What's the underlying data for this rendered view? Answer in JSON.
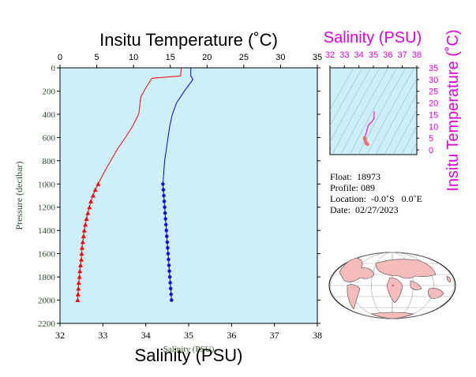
{
  "chart_data": [
    {
      "type": "line",
      "title": "",
      "top_axis": {
        "label": "Insitu Temperature (˚C)",
        "range": [
          0,
          35
        ],
        "ticks": [
          0,
          5,
          10,
          15,
          20,
          25,
          30,
          35
        ]
      },
      "bottom_axis": {
        "label": "Salinity (PSU)",
        "overlap_label": "Salinity (PSU)",
        "range": [
          32,
          38
        ],
        "ticks": [
          32,
          33,
          34,
          35,
          36,
          37,
          38
        ]
      },
      "left_axis": {
        "label": "Pressure (decibar)",
        "range": [
          0,
          2200
        ],
        "inverted": true,
        "ticks": [
          0,
          200,
          400,
          600,
          800,
          1000,
          1200,
          1400,
          1600,
          1800,
          2000,
          2200
        ]
      },
      "series": [
        {
          "axis": "temperature",
          "color": "#ff0000",
          "marker": "triangle",
          "line": [
            [
              16.5,
              0
            ],
            [
              16.4,
              70
            ],
            [
              12.5,
              90
            ],
            [
              11.7,
              170
            ],
            [
              11,
              250
            ],
            [
              10.9,
              300
            ],
            [
              10.7,
              400
            ],
            [
              9.9,
              500
            ],
            [
              8.9,
              600
            ],
            [
              7.8,
              700
            ],
            [
              6.9,
              800
            ],
            [
              6,
              900
            ],
            [
              5.2,
              1000
            ]
          ],
          "points": [
            [
              5.2,
              1000
            ],
            [
              4.8,
              1050
            ],
            [
              4.5,
              1100
            ],
            [
              4.2,
              1150
            ],
            [
              4.0,
              1200
            ],
            [
              3.8,
              1250
            ],
            [
              3.6,
              1300
            ],
            [
              3.45,
              1350
            ],
            [
              3.3,
              1400
            ],
            [
              3.2,
              1450
            ],
            [
              3.1,
              1500
            ],
            [
              3.0,
              1550
            ],
            [
              2.95,
              1600
            ],
            [
              2.9,
              1650
            ],
            [
              2.8,
              1700
            ],
            [
              2.7,
              1750
            ],
            [
              2.65,
              1800
            ],
            [
              2.55,
              1850
            ],
            [
              2.5,
              1900
            ],
            [
              2.45,
              1950
            ],
            [
              2.4,
              2000
            ]
          ]
        },
        {
          "axis": "salinity",
          "color": "#0000ff",
          "marker": "circle",
          "line": [
            [
              35.05,
              0
            ],
            [
              35.05,
              70
            ],
            [
              35.1,
              100
            ],
            [
              34.9,
              200
            ],
            [
              34.72,
              300
            ],
            [
              34.62,
              400
            ],
            [
              34.56,
              500
            ],
            [
              34.52,
              600
            ],
            [
              34.48,
              700
            ],
            [
              34.44,
              800
            ],
            [
              34.42,
              900
            ],
            [
              34.4,
              1000
            ]
          ],
          "points": [
            [
              34.4,
              1000
            ],
            [
              34.41,
              1050
            ],
            [
              34.42,
              1100
            ],
            [
              34.43,
              1150
            ],
            [
              34.44,
              1200
            ],
            [
              34.45,
              1250
            ],
            [
              34.46,
              1300
            ],
            [
              34.47,
              1350
            ],
            [
              34.48,
              1400
            ],
            [
              34.49,
              1450
            ],
            [
              34.5,
              1500
            ],
            [
              34.51,
              1550
            ],
            [
              34.52,
              1600
            ],
            [
              34.53,
              1650
            ],
            [
              34.54,
              1700
            ],
            [
              34.55,
              1750
            ],
            [
              34.56,
              1800
            ],
            [
              34.57,
              1850
            ],
            [
              34.58,
              1900
            ],
            [
              34.59,
              1950
            ],
            [
              34.6,
              2000
            ]
          ]
        }
      ]
    },
    {
      "type": "scatter",
      "top_axis": {
        "label": "Salinity (PSU)",
        "range": [
          32,
          38
        ],
        "ticks": [
          32,
          33,
          34,
          35,
          36,
          37,
          38
        ]
      },
      "right_axis": {
        "label": "Insitu Temperature (˚C)",
        "range": [
          -2,
          35
        ],
        "ticks": [
          0,
          5,
          10,
          15,
          20,
          25,
          30,
          35
        ]
      },
      "series": [
        {
          "color": "#ff00ff",
          "line": [
            [
              35.05,
              16.5
            ],
            [
              35.05,
              13.5
            ],
            [
              34.9,
              12
            ],
            [
              34.7,
              10.9
            ],
            [
              34.6,
              9.5
            ],
            [
              34.52,
              7.5
            ],
            [
              34.45,
              6
            ]
          ],
          "points": [
            [
              34.4,
              5.2
            ],
            [
              34.42,
              4.5
            ],
            [
              34.44,
              4.0
            ],
            [
              34.46,
              3.6
            ],
            [
              34.48,
              3.3
            ],
            [
              34.5,
              3.0
            ],
            [
              34.52,
              2.8
            ],
            [
              34.55,
              2.6
            ],
            [
              34.58,
              2.5
            ],
            [
              34.6,
              2.4
            ]
          ]
        }
      ]
    }
  ],
  "info": {
    "float_label": "Float:",
    "float_value": "18973",
    "profile_label": "Profile:",
    "profile_value": "089",
    "location_label": "Location:",
    "location_value": "-0.0˚S   0.0˚E",
    "date_label": "Date:",
    "date_value": "02/27/2023"
  },
  "colors": {
    "plot_bg": "#cdeff8",
    "temperature": "#ff0000",
    "salinity": "#0000ff",
    "ts_curve": "#ff00ff",
    "magenta_axis": "#e000e0",
    "land": "#f6bcbc",
    "ocean": "#ffffff"
  }
}
